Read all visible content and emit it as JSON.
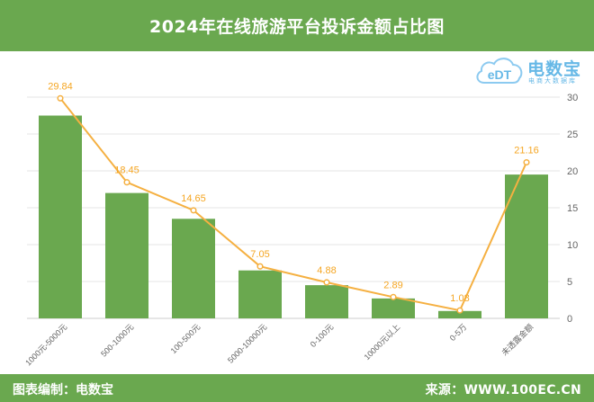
{
  "header": {
    "title": "2024年在线旅游平台投诉金额占比图"
  },
  "logo": {
    "icon_name": "edt-cloud-logo-icon",
    "cloud_text": "eDT",
    "name": "电数宝",
    "slogan": "电商大数据库"
  },
  "footer": {
    "left": "图表编制：电数宝",
    "right": "来源：WWW.100EC.CN"
  },
  "colors": {
    "header_bg": "#6aa84f",
    "bar": "#6aa84f",
    "line": "#f5b041",
    "label": "#f5a623",
    "grid": "#e6e6e6",
    "axis_text": "#666666"
  },
  "chart_data": {
    "type": "bar",
    "title": "2024年在线旅游平台投诉金额占比图",
    "categories": [
      "1000元-5000元",
      "500-1000元",
      "100-500元",
      "5000-10000元",
      "0-100元",
      "10000元以上",
      "0-5万",
      "未透露金额"
    ],
    "series": [
      {
        "type": "bar",
        "values": [
          27.5,
          17.0,
          13.5,
          6.5,
          4.5,
          2.7,
          1.0,
          19.5
        ]
      },
      {
        "type": "line",
        "values": [
          29.84,
          18.45,
          14.65,
          7.05,
          4.88,
          2.89,
          1.08,
          21.16
        ],
        "labels": [
          "29.84",
          "18.45",
          "14.65",
          "7.05",
          "4.88",
          "2.89",
          "1.08",
          "21.16"
        ]
      }
    ],
    "y_axis_side": "right",
    "yticks": [
      "0",
      "5",
      "10",
      "15",
      "20",
      "25",
      "30"
    ],
    "ylim": [
      0,
      30
    ],
    "grid": true,
    "legend": "none"
  }
}
